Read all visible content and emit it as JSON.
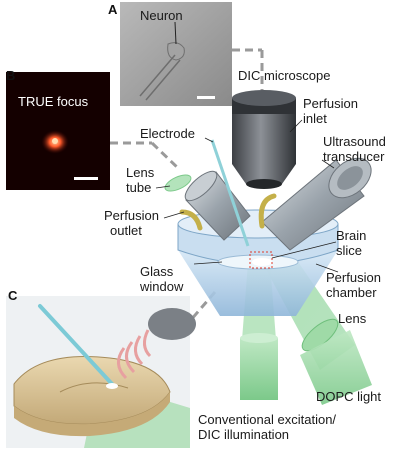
{
  "panels": {
    "a": {
      "letter": "A",
      "neuron_label": "Neuron"
    },
    "b": {
      "letter": "B",
      "title": "TRUE focus"
    },
    "c": {
      "letter": "C"
    }
  },
  "labels": {
    "dic_microscope": "DIC microscope",
    "perfusion_inlet_1": "Perfusion",
    "perfusion_inlet_2": "inlet",
    "electrode": "Electrode",
    "ultrasound_1": "Ultrasound",
    "ultrasound_2": "transducer",
    "lens_tube_1": "Lens",
    "lens_tube_2": "tube",
    "perfusion_outlet_1": "Perfusion",
    "perfusion_outlet_2": "outlet",
    "brain_slice_1": "Brain",
    "brain_slice_2": "slice",
    "glass_window_1": "Glass",
    "glass_window_2": "window",
    "perfusion_chamber_1": "Perfusion",
    "perfusion_chamber_2": "chamber",
    "lens": "Lens",
    "dopc_light": "DOPC light",
    "conventional_1": "Conventional excitation/",
    "conventional_2": "DIC illumination"
  },
  "colors": {
    "green_light": "#8fd19a",
    "chamber_blue": "#b9d7ee",
    "metal": "#9aa3ab",
    "dark_objective": "#4a4d52",
    "focus_red": "#e03b2a",
    "slice_tan": "#d9c49a"
  }
}
